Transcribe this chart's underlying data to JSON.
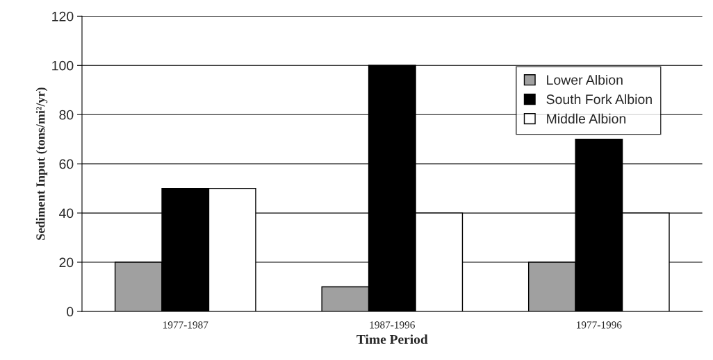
{
  "chart_data": {
    "type": "bar",
    "xlabel": "Time Period",
    "ylabel": "Sediment Input (tons/mi²/yr)",
    "categories": [
      "1977-1987",
      "1987-1996",
      "1977-1996"
    ],
    "series": [
      {
        "name": "Lower Albion",
        "color": "#a0a0a0",
        "values": [
          20,
          10,
          20
        ]
      },
      {
        "name": "South Fork Albion",
        "color": "#000000",
        "values": [
          50,
          100,
          70
        ]
      },
      {
        "name": "Middle Albion",
        "color": "#ffffff",
        "values": [
          50,
          40,
          40
        ]
      }
    ],
    "ylim": [
      0,
      120
    ],
    "yticks": [
      0,
      20,
      40,
      60,
      80,
      100,
      120
    ],
    "grid": "y",
    "legend": "top right"
  }
}
